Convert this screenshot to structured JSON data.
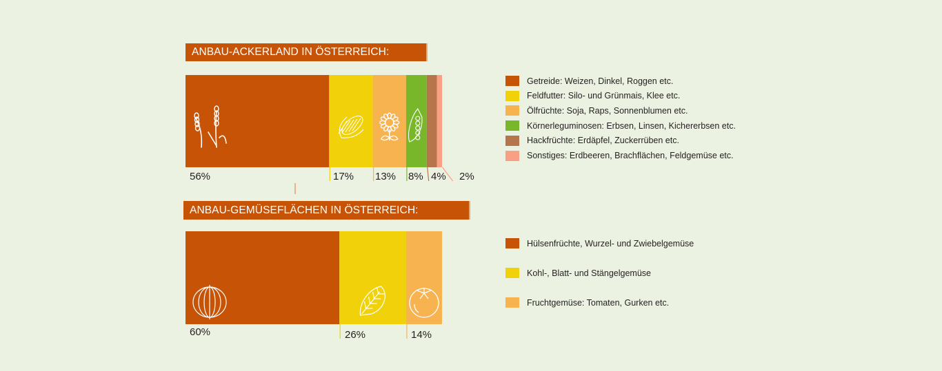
{
  "chart_data": [
    {
      "type": "bar",
      "orientation": "horizontal-stacked-100",
      "title": "ANBAU-ACKERLAND IN ÖSTERREICH:",
      "categories": [
        "Getreide: Weizen, Dinkel, Roggen etc.",
        "Feldfutter: Silo- und Grünmais, Klee etc.",
        "Ölfrüchte: Soja, Raps, Sonnenblumen etc.",
        "Körnerleguminosen: Erbsen, Linsen, Kichererbsen etc.",
        "Hackfrüchte: Erdäpfel, Zuckerrüben etc.",
        "Sonstiges: Erdbeeren, Brachflächen, Feldgemüse etc."
      ],
      "values": [
        56,
        17,
        13,
        8,
        4,
        2
      ],
      "labels": [
        "56%",
        "17%",
        "13%",
        "8%",
        "4%",
        "2%"
      ],
      "colors": [
        "#c65306",
        "#f0d10a",
        "#f7b350",
        "#78b72a",
        "#b5764b",
        "#f9a084"
      ],
      "icons": [
        "wheat-icon",
        "corn-icon",
        "sunflower-icon",
        "pea-pod-icon",
        null,
        null
      ],
      "legend": "right",
      "unit": "%"
    },
    {
      "type": "bar",
      "orientation": "horizontal-stacked-100",
      "title": "ANBAU-GEMÜSEFLÄCHEN IN ÖSTERREICH:",
      "categories": [
        "Hülsenfrüchte, Wurzel- und Zwiebelgemüse",
        "Kohl-, Blatt- und Stängelgemüse",
        "Fruchtgemüse: Tomaten, Gurken etc."
      ],
      "values": [
        60,
        26,
        14
      ],
      "labels": [
        "60%",
        "26%",
        "14%"
      ],
      "colors": [
        "#c65306",
        "#f0d10a",
        "#f7b350"
      ],
      "icons": [
        "onion-icon",
        "lettuce-icon",
        "tomato-icon"
      ],
      "legend": "right",
      "unit": "%"
    }
  ]
}
